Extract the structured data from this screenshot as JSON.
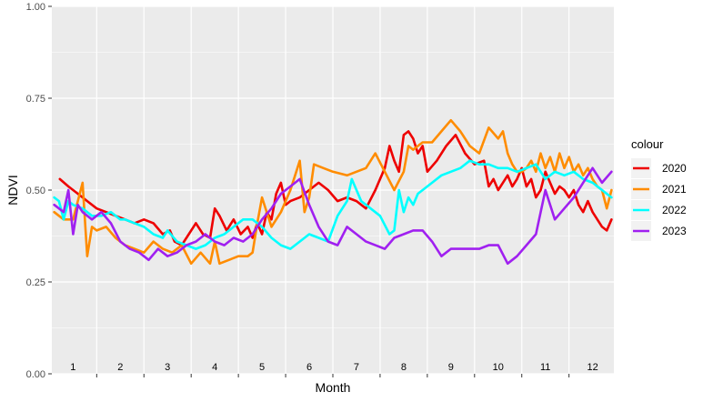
{
  "chart_data": {
    "type": "line",
    "xlabel": "Month",
    "ylabel": "NDVI",
    "xlim": [
      0.55,
      12.45
    ],
    "ylim": [
      0,
      1
    ],
    "yticks": [
      "0.00",
      "0.25",
      "0.50",
      "0.75",
      "1.00"
    ],
    "month_labels": [
      "1",
      "2",
      "3",
      "4",
      "5",
      "6",
      "7",
      "8",
      "9",
      "10",
      "11",
      "12"
    ],
    "grid": true,
    "legend": {
      "title": "colour",
      "position": "right"
    },
    "series": [
      {
        "name": "2020",
        "color": "#ee0000",
        "x": [
          0.72,
          0.9,
          1.1,
          1.3,
          1.5,
          1.7,
          1.9,
          2.1,
          2.3,
          2.5,
          2.7,
          2.9,
          3.05,
          3.15,
          3.3,
          3.45,
          3.6,
          3.75,
          3.9,
          4.0,
          4.1,
          4.25,
          4.4,
          4.55,
          4.7,
          4.8,
          4.9,
          5.0,
          5.1,
          5.2,
          5.3,
          5.4,
          5.5,
          5.6,
          5.8,
          6.0,
          6.2,
          6.4,
          6.6,
          6.8,
          7.0,
          7.2,
          7.4,
          7.6,
          7.7,
          7.8,
          7.9,
          8.0,
          8.1,
          8.2,
          8.3,
          8.4,
          8.5,
          8.7,
          8.9,
          9.1,
          9.3,
          9.5,
          9.7,
          9.8,
          9.9,
          10.0,
          10.1,
          10.2,
          10.3,
          10.4,
          10.5,
          10.6,
          10.7,
          10.8,
          10.9,
          11.0,
          11.1,
          11.2,
          11.3,
          11.4,
          11.5,
          11.6,
          11.7,
          11.8,
          11.9,
          12.0,
          12.1,
          12.2,
          12.3,
          12.4
        ],
        "y": [
          0.53,
          0.51,
          0.49,
          0.47,
          0.45,
          0.44,
          0.43,
          0.42,
          0.41,
          0.42,
          0.41,
          0.38,
          0.39,
          0.36,
          0.35,
          0.38,
          0.41,
          0.38,
          0.37,
          0.45,
          0.43,
          0.39,
          0.42,
          0.38,
          0.4,
          0.37,
          0.41,
          0.38,
          0.44,
          0.42,
          0.49,
          0.52,
          0.46,
          0.47,
          0.48,
          0.5,
          0.52,
          0.5,
          0.47,
          0.48,
          0.47,
          0.45,
          0.5,
          0.56,
          0.62,
          0.58,
          0.55,
          0.65,
          0.66,
          0.64,
          0.6,
          0.62,
          0.55,
          0.58,
          0.62,
          0.65,
          0.6,
          0.57,
          0.58,
          0.51,
          0.53,
          0.5,
          0.52,
          0.54,
          0.51,
          0.53,
          0.56,
          0.51,
          0.53,
          0.48,
          0.5,
          0.55,
          0.52,
          0.49,
          0.51,
          0.5,
          0.48,
          0.5,
          0.46,
          0.44,
          0.47,
          0.44,
          0.42,
          0.4,
          0.39,
          0.42
        ]
      },
      {
        "name": "2021",
        "color": "#ff8c00",
        "x": [
          0.6,
          0.8,
          1.0,
          1.1,
          1.2,
          1.3,
          1.4,
          1.5,
          1.7,
          1.9,
          2.1,
          2.3,
          2.5,
          2.7,
          2.9,
          3.1,
          3.3,
          3.5,
          3.7,
          3.9,
          4.0,
          4.1,
          4.3,
          4.5,
          4.7,
          4.8,
          4.9,
          5.0,
          5.2,
          5.4,
          5.6,
          5.7,
          5.8,
          5.9,
          6.0,
          6.1,
          6.3,
          6.5,
          6.8,
          7.0,
          7.2,
          7.4,
          7.6,
          7.8,
          8.0,
          8.1,
          8.2,
          8.3,
          8.4,
          8.6,
          8.8,
          9.0,
          9.2,
          9.4,
          9.6,
          9.8,
          10.0,
          10.1,
          10.2,
          10.3,
          10.4,
          10.5,
          10.6,
          10.7,
          10.8,
          10.9,
          11.0,
          11.1,
          11.2,
          11.3,
          11.4,
          11.5,
          11.6,
          11.7,
          11.8,
          11.9,
          12.0,
          12.1,
          12.2,
          12.3,
          12.4
        ],
        "y": [
          0.44,
          0.42,
          0.42,
          0.47,
          0.52,
          0.32,
          0.4,
          0.39,
          0.4,
          0.37,
          0.35,
          0.34,
          0.33,
          0.36,
          0.34,
          0.33,
          0.35,
          0.3,
          0.33,
          0.3,
          0.36,
          0.3,
          0.31,
          0.32,
          0.32,
          0.33,
          0.41,
          0.48,
          0.4,
          0.44,
          0.5,
          0.54,
          0.58,
          0.44,
          0.48,
          0.57,
          0.56,
          0.55,
          0.54,
          0.55,
          0.56,
          0.6,
          0.55,
          0.5,
          0.55,
          0.62,
          0.61,
          0.62,
          0.63,
          0.63,
          0.66,
          0.69,
          0.66,
          0.62,
          0.6,
          0.67,
          0.64,
          0.66,
          0.6,
          0.57,
          0.55,
          0.55,
          0.56,
          0.58,
          0.55,
          0.6,
          0.56,
          0.59,
          0.55,
          0.6,
          0.56,
          0.59,
          0.55,
          0.57,
          0.54,
          0.56,
          0.53,
          0.51,
          0.5,
          0.45,
          0.5
        ]
      },
      {
        "name": "2022",
        "color": "#00ffff",
        "x": [
          0.6,
          0.7,
          0.8,
          0.9,
          1.0,
          1.2,
          1.4,
          1.6,
          1.8,
          2.0,
          2.1,
          2.3,
          2.5,
          2.7,
          2.9,
          3.0,
          3.2,
          3.4,
          3.6,
          3.8,
          4.0,
          4.2,
          4.4,
          4.6,
          4.8,
          5.0,
          5.2,
          5.4,
          5.6,
          5.8,
          6.0,
          6.2,
          6.4,
          6.6,
          6.8,
          6.9,
          7.1,
          7.3,
          7.5,
          7.7,
          7.8,
          7.9,
          8.0,
          8.1,
          8.2,
          8.3,
          8.4,
          8.6,
          8.8,
          9.0,
          9.2,
          9.4,
          9.6,
          9.8,
          10.0,
          10.2,
          10.4,
          10.6,
          10.8,
          11.0,
          11.2,
          11.4,
          11.6,
          11.8,
          12.0,
          12.2,
          12.4
        ],
        "y": [
          0.48,
          0.47,
          0.42,
          0.47,
          0.46,
          0.45,
          0.43,
          0.43,
          0.44,
          0.42,
          0.42,
          0.41,
          0.4,
          0.38,
          0.37,
          0.39,
          0.36,
          0.35,
          0.34,
          0.35,
          0.37,
          0.38,
          0.4,
          0.42,
          0.42,
          0.4,
          0.37,
          0.35,
          0.34,
          0.36,
          0.38,
          0.37,
          0.36,
          0.43,
          0.47,
          0.53,
          0.47,
          0.45,
          0.43,
          0.38,
          0.39,
          0.5,
          0.44,
          0.48,
          0.46,
          0.49,
          0.5,
          0.52,
          0.54,
          0.55,
          0.56,
          0.58,
          0.57,
          0.57,
          0.56,
          0.56,
          0.55,
          0.56,
          0.57,
          0.53,
          0.55,
          0.54,
          0.55,
          0.53,
          0.52,
          0.5,
          0.48
        ]
      },
      {
        "name": "2023",
        "color": "#a020f0",
        "x": [
          0.6,
          0.8,
          0.9,
          1.0,
          1.1,
          1.2,
          1.4,
          1.6,
          1.8,
          2.0,
          2.2,
          2.4,
          2.6,
          2.8,
          3.0,
          3.2,
          3.4,
          3.6,
          3.8,
          4.0,
          4.2,
          4.4,
          4.6,
          4.8,
          5.0,
          5.2,
          5.4,
          5.6,
          5.8,
          6.0,
          6.2,
          6.4,
          6.6,
          6.8,
          7.0,
          7.2,
          7.4,
          7.6,
          7.8,
          8.0,
          8.2,
          8.4,
          8.6,
          8.8,
          9.0,
          9.2,
          9.4,
          9.6,
          9.8,
          10.0,
          10.2,
          10.4,
          10.6,
          10.8,
          11.0,
          11.2,
          11.4,
          11.6,
          11.8,
          12.0,
          12.2,
          12.4
        ],
        "y": [
          0.46,
          0.44,
          0.5,
          0.38,
          0.46,
          0.44,
          0.42,
          0.44,
          0.41,
          0.36,
          0.34,
          0.33,
          0.31,
          0.34,
          0.32,
          0.33,
          0.35,
          0.36,
          0.38,
          0.36,
          0.35,
          0.37,
          0.36,
          0.38,
          0.42,
          0.45,
          0.49,
          0.51,
          0.53,
          0.46,
          0.4,
          0.36,
          0.35,
          0.4,
          0.38,
          0.36,
          0.35,
          0.34,
          0.37,
          0.38,
          0.39,
          0.39,
          0.36,
          0.32,
          0.34,
          0.34,
          0.34,
          0.34,
          0.35,
          0.35,
          0.3,
          0.32,
          0.35,
          0.38,
          0.5,
          0.42,
          0.45,
          0.48,
          0.52,
          0.56,
          0.52,
          0.55
        ]
      }
    ]
  }
}
